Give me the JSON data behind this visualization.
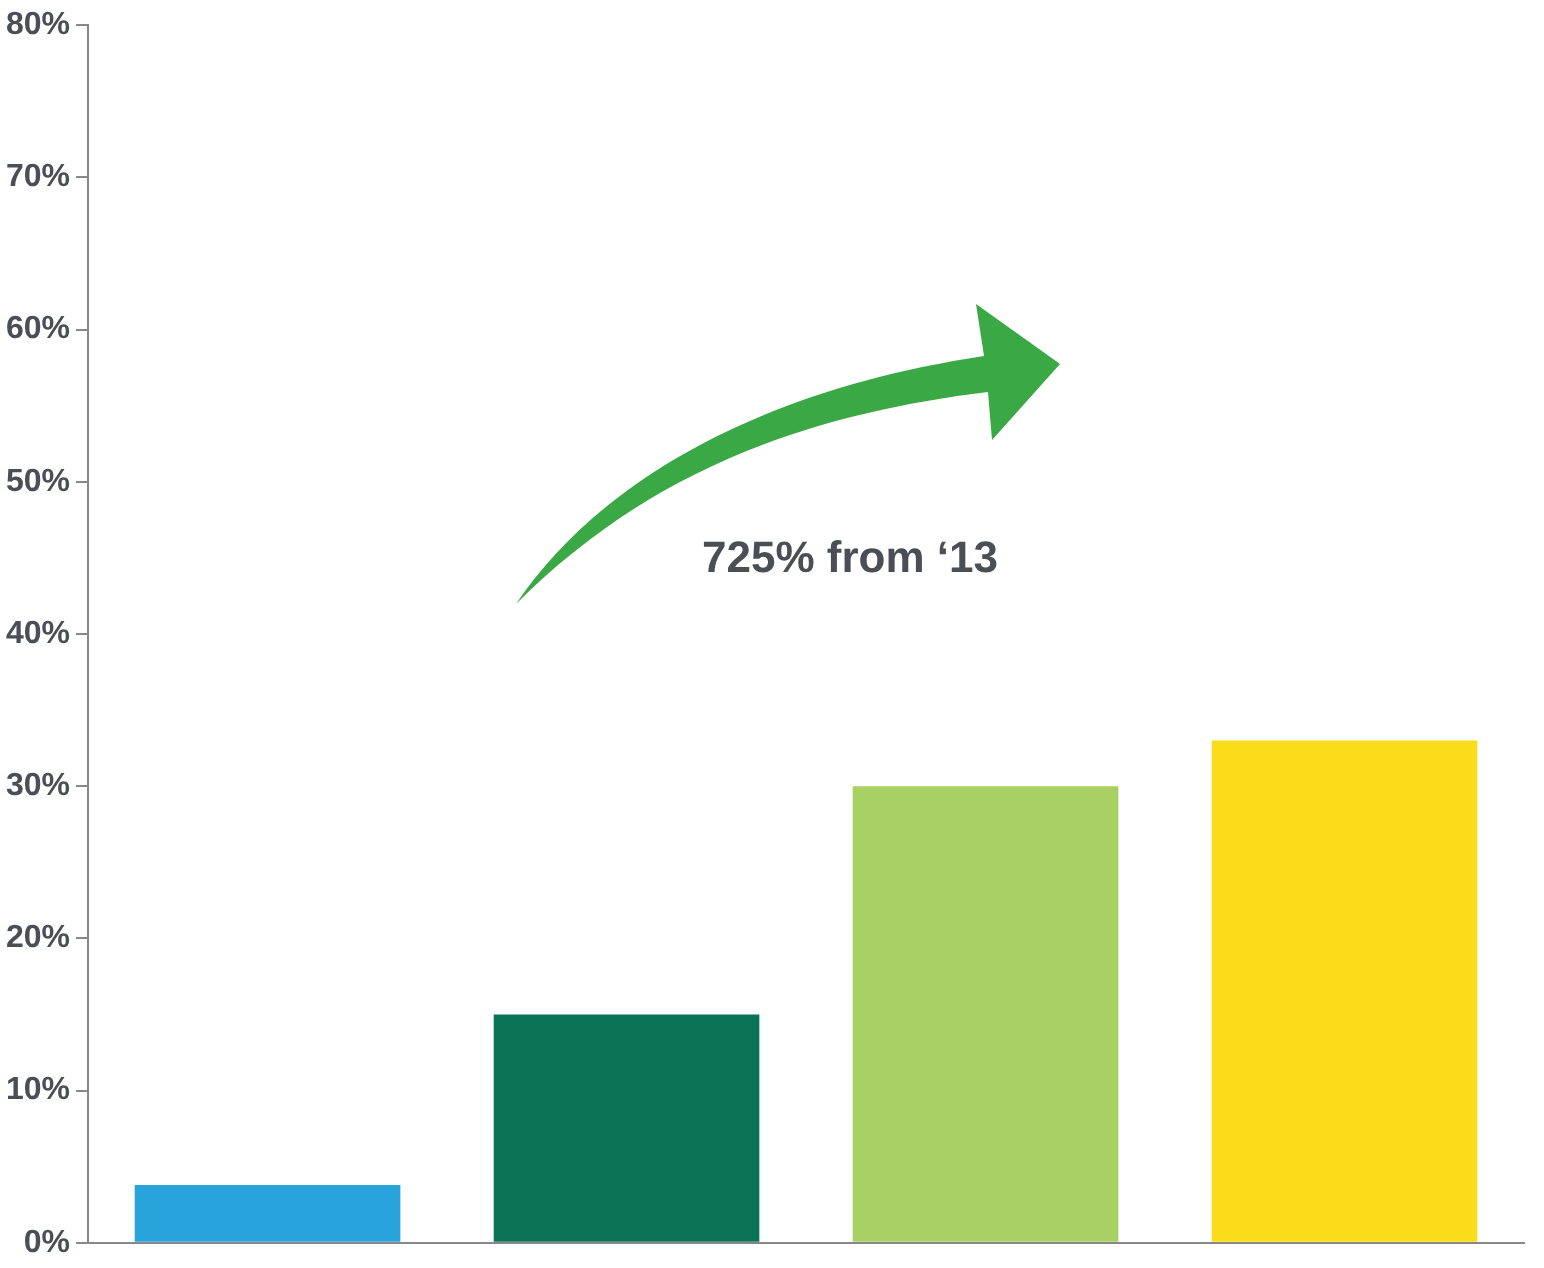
{
  "chart_data": {
    "type": "bar",
    "categories": [
      null,
      null,
      null,
      null
    ],
    "values": [
      3.8,
      15,
      30,
      33
    ],
    "colors": [
      "#29a3dc",
      "#0b7355",
      "#a8d062",
      "#fbdc1a"
    ],
    "ylim": [
      0,
      80
    ],
    "yticks": [
      {
        "value": 0,
        "label": "0%"
      },
      {
        "value": 10,
        "label": "10%"
      },
      {
        "value": 20,
        "label": "20%"
      },
      {
        "value": 30,
        "label": "30%"
      },
      {
        "value": 40,
        "label": "40%"
      },
      {
        "value": 50,
        "label": "50%"
      },
      {
        "value": 60,
        "label": "60%"
      },
      {
        "value": 70,
        "label": "70%"
      },
      {
        "value": 80,
        "label": "80%"
      }
    ],
    "annotations": [
      "725% from ‘13"
    ],
    "grid": false,
    "legend": false
  }
}
